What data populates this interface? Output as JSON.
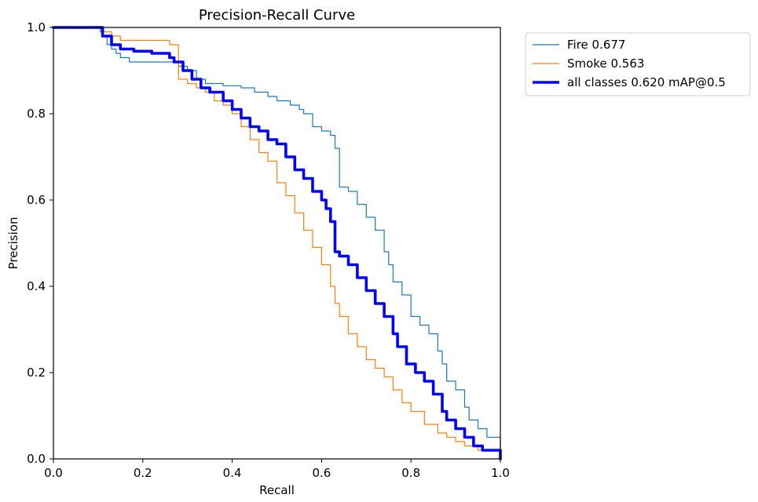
{
  "chart_data": {
    "type": "line",
    "title": "Precision-Recall Curve",
    "xlabel": "Recall",
    "ylabel": "Precision",
    "xlim": [
      0.0,
      1.0
    ],
    "ylim": [
      0.0,
      1.0
    ],
    "xticks": [
      "0.0",
      "0.2",
      "0.4",
      "0.6",
      "0.8",
      "1.0"
    ],
    "yticks": [
      "0.0",
      "0.2",
      "0.4",
      "0.6",
      "0.8",
      "1.0"
    ],
    "grid": false,
    "legend_position": "outside-top-right",
    "series": [
      {
        "name": "Fire 0.677",
        "color": "#1f77b4",
        "width": "thin",
        "x": [
          0.0,
          0.1,
          0.105,
          0.11,
          0.12,
          0.13,
          0.14,
          0.15,
          0.16,
          0.17,
          0.2,
          0.25,
          0.28,
          0.3,
          0.32,
          0.34,
          0.38,
          0.42,
          0.45,
          0.48,
          0.5,
          0.53,
          0.55,
          0.56,
          0.58,
          0.6,
          0.62,
          0.63,
          0.64,
          0.66,
          0.68,
          0.7,
          0.72,
          0.74,
          0.75,
          0.76,
          0.78,
          0.8,
          0.82,
          0.84,
          0.86,
          0.87,
          0.88,
          0.9,
          0.92,
          0.93,
          0.95,
          0.97,
          1.0
        ],
        "y": [
          1.0,
          1.0,
          0.99,
          0.98,
          0.96,
          0.95,
          0.94,
          0.93,
          0.93,
          0.92,
          0.92,
          0.92,
          0.91,
          0.9,
          0.88,
          0.87,
          0.865,
          0.86,
          0.85,
          0.84,
          0.83,
          0.82,
          0.81,
          0.8,
          0.77,
          0.76,
          0.75,
          0.72,
          0.63,
          0.62,
          0.59,
          0.56,
          0.53,
          0.48,
          0.45,
          0.41,
          0.38,
          0.33,
          0.31,
          0.29,
          0.25,
          0.22,
          0.18,
          0.16,
          0.12,
          0.09,
          0.07,
          0.05,
          0.0
        ]
      },
      {
        "name": "Smoke 0.563",
        "color": "#ff7f0e",
        "width": "thin",
        "x": [
          0.0,
          0.1,
          0.11,
          0.13,
          0.15,
          0.2,
          0.26,
          0.28,
          0.3,
          0.32,
          0.34,
          0.36,
          0.38,
          0.4,
          0.42,
          0.44,
          0.46,
          0.48,
          0.5,
          0.52,
          0.54,
          0.56,
          0.58,
          0.6,
          0.62,
          0.63,
          0.64,
          0.66,
          0.68,
          0.7,
          0.72,
          0.74,
          0.76,
          0.78,
          0.8,
          0.83,
          0.86,
          0.88,
          0.9,
          0.92,
          0.95,
          1.0
        ],
        "y": [
          1.0,
          1.0,
          0.99,
          0.98,
          0.97,
          0.97,
          0.96,
          0.88,
          0.87,
          0.86,
          0.85,
          0.83,
          0.82,
          0.8,
          0.77,
          0.74,
          0.71,
          0.69,
          0.64,
          0.61,
          0.57,
          0.53,
          0.49,
          0.45,
          0.4,
          0.36,
          0.33,
          0.29,
          0.26,
          0.23,
          0.21,
          0.19,
          0.16,
          0.13,
          0.11,
          0.08,
          0.06,
          0.05,
          0.04,
          0.03,
          0.02,
          0.0
        ]
      },
      {
        "name": "all classes 0.620 mAP@0.5",
        "color": "#0000ff",
        "width": "thick",
        "x": [
          0.0,
          0.1,
          0.11,
          0.13,
          0.15,
          0.18,
          0.22,
          0.26,
          0.27,
          0.29,
          0.31,
          0.33,
          0.35,
          0.38,
          0.4,
          0.42,
          0.44,
          0.46,
          0.48,
          0.5,
          0.52,
          0.54,
          0.56,
          0.58,
          0.6,
          0.61,
          0.62,
          0.63,
          0.64,
          0.66,
          0.68,
          0.7,
          0.72,
          0.74,
          0.76,
          0.77,
          0.79,
          0.81,
          0.83,
          0.85,
          0.87,
          0.88,
          0.9,
          0.92,
          0.94,
          0.96,
          1.0
        ],
        "y": [
          1.0,
          1.0,
          0.98,
          0.96,
          0.95,
          0.945,
          0.94,
          0.93,
          0.92,
          0.9,
          0.88,
          0.86,
          0.85,
          0.83,
          0.81,
          0.79,
          0.77,
          0.76,
          0.74,
          0.73,
          0.7,
          0.67,
          0.65,
          0.62,
          0.6,
          0.58,
          0.55,
          0.48,
          0.47,
          0.45,
          0.42,
          0.39,
          0.36,
          0.33,
          0.29,
          0.26,
          0.22,
          0.2,
          0.18,
          0.15,
          0.11,
          0.09,
          0.07,
          0.05,
          0.03,
          0.02,
          0.0
        ]
      }
    ]
  }
}
